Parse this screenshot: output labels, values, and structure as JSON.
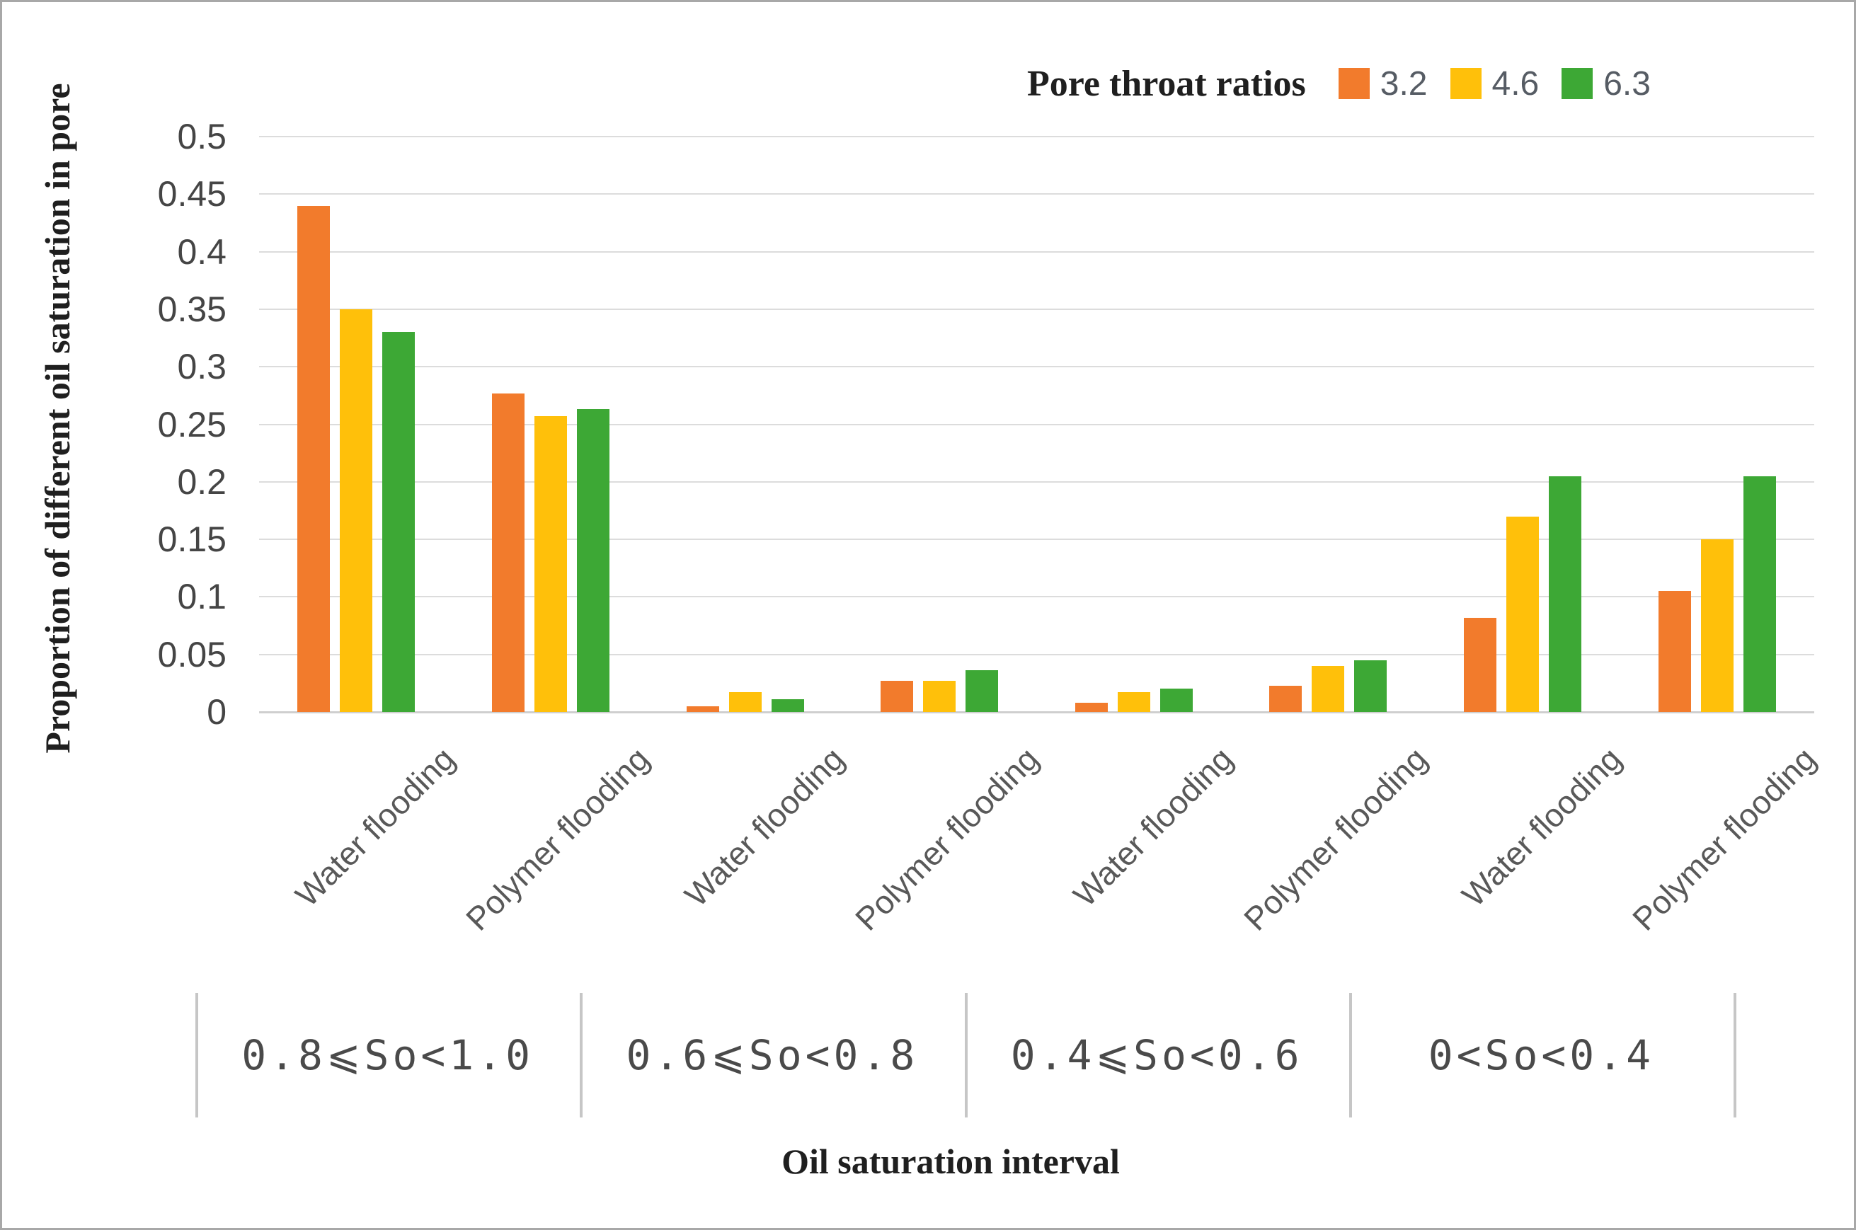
{
  "chart_data": {
    "type": "bar",
    "title": "",
    "ylabel": "Proportion of different oil saturation in pore",
    "xlabel": "Oil saturation interval",
    "legend_title": "Pore throat ratios",
    "legend_position": "top-right",
    "ylim": [
      0,
      0.5
    ],
    "ytick_step": 0.05,
    "yticks": [
      0,
      0.05,
      0.1,
      0.15,
      0.2,
      0.25,
      0.3,
      0.35,
      0.4,
      0.45,
      0.5
    ],
    "grid": true,
    "categories": [
      "Water flooding",
      "Polymer flooding",
      "Water flooding",
      "Polymer flooding",
      "Water flooding",
      "Polymer flooding",
      "Water flooding",
      "Polymer flooding"
    ],
    "group_axis": {
      "intervals": [
        "0.8⩽So<1.0",
        "0.6⩽So<0.8",
        "0.4⩽So<0.6",
        "0<So<0.4"
      ],
      "groups_per_interval": 2
    },
    "series": [
      {
        "name": "3.2",
        "color": "#F27B2C",
        "values": [
          0.44,
          0.277,
          0.005,
          0.027,
          0.008,
          0.023,
          0.082,
          0.105
        ]
      },
      {
        "name": "4.6",
        "color": "#FFC00A",
        "values": [
          0.35,
          0.257,
          0.017,
          0.027,
          0.017,
          0.04,
          0.17,
          0.15
        ]
      },
      {
        "name": "6.3",
        "color": "#3DA835",
        "values": [
          0.33,
          0.263,
          0.011,
          0.036,
          0.02,
          0.045,
          0.205,
          0.205
        ]
      }
    ],
    "colors": {
      "grid": "#dcdcdc",
      "baseline": "#cfcfcf",
      "tick_text": "#454545",
      "category_text": "#595959",
      "interval_text": "#4a4a4a",
      "divider": "#c6c6c6",
      "title_text": "#1f1f1f",
      "legend_text": "#565c64"
    }
  }
}
